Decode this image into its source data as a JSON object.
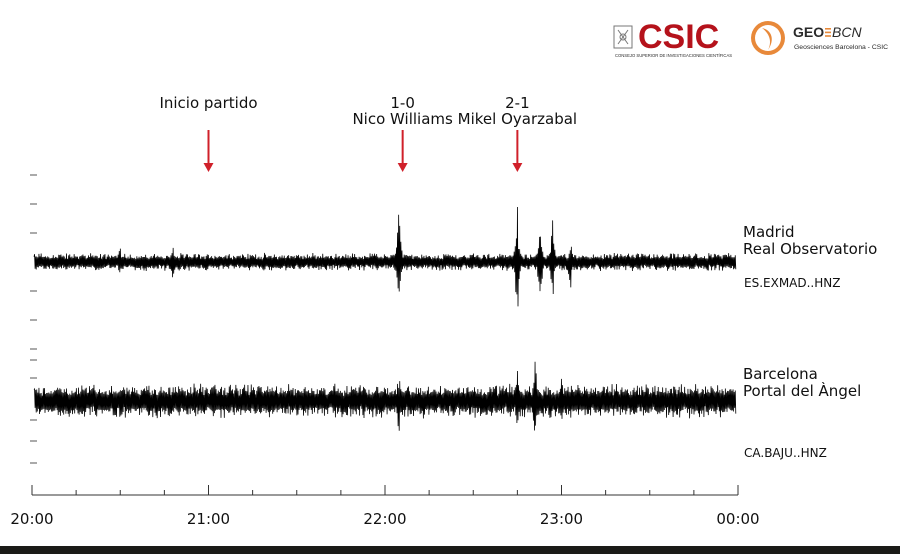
{
  "logos": {
    "csic_text": "CSIC",
    "csic_subtitle": "CONSEJO SUPERIOR DE INVESTIGACIONES CIENTÍFICAS",
    "geo_text_left": "GEO",
    "geo_text_right": "BCN",
    "geo_subtitle": "Geosciences Barcelona - CSIC",
    "brand_red": "#b5121b",
    "brand_orange": "#e8893a"
  },
  "chart_data": {
    "type": "line",
    "title": "",
    "xlabel": "",
    "ylabel": "",
    "x_tick_labels": [
      "20:00",
      "21:00",
      "22:00",
      "23:00",
      "00:00"
    ],
    "x_range_hours": [
      20,
      24
    ],
    "x_minor_step_hours": 0.25,
    "annotations": [
      {
        "lines": [
          "Inicio partido"
        ],
        "time_hours": 21.0,
        "arrow_color": "#d0202a"
      },
      {
        "lines": [
          "1-0",
          "Nico Williams"
        ],
        "time_hours": 22.1,
        "arrow_color": "#d0202a"
      },
      {
        "lines": [
          "2-1",
          "Mikel Oyarzabal"
        ],
        "time_hours": 22.75,
        "arrow_color": "#d0202a"
      }
    ],
    "series": [
      {
        "name": "Madrid Real Observatorio",
        "label_lines": [
          "Madrid",
          "Real Observatorio"
        ],
        "code": "ES.EXMAD..HNZ",
        "background_amplitude": 0.13,
        "spikes": [
          {
            "time_hours": 20.5,
            "amplitude": 0.3
          },
          {
            "time_hours": 20.8,
            "amplitude": 0.35
          },
          {
            "time_hours": 22.08,
            "amplitude": 1.0
          },
          {
            "time_hours": 22.75,
            "amplitude": 1.0
          },
          {
            "time_hours": 22.88,
            "amplitude": 0.75
          },
          {
            "time_hours": 22.95,
            "amplitude": 0.7
          },
          {
            "time_hours": 23.05,
            "amplitude": 0.5
          },
          {
            "time_hours": 23.3,
            "amplitude": 0.22
          }
        ],
        "color": "#000000"
      },
      {
        "name": "Barcelona Portal del Àngel",
        "label_lines": [
          "Barcelona",
          "Portal del Àngel"
        ],
        "code": "CA.BAJU..HNZ",
        "background_amplitude": 0.3,
        "spikes": [
          {
            "time_hours": 22.08,
            "amplitude": 0.75
          },
          {
            "time_hours": 22.75,
            "amplitude": 0.78
          },
          {
            "time_hours": 22.85,
            "amplitude": 0.95
          },
          {
            "time_hours": 23.0,
            "amplitude": 0.6
          },
          {
            "time_hours": 23.75,
            "amplitude": 0.4
          }
        ],
        "color": "#000000"
      }
    ],
    "grid": false,
    "legend": "right"
  }
}
